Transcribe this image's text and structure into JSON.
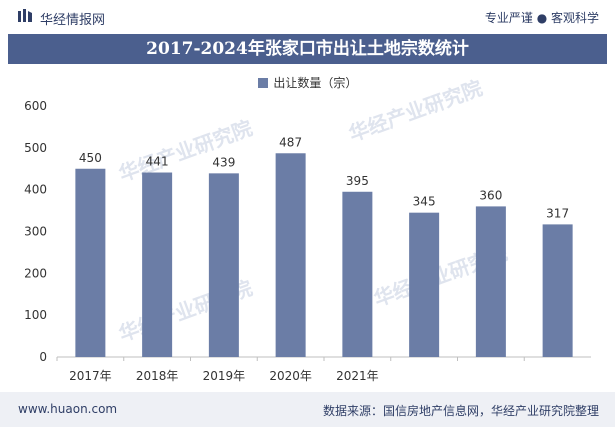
{
  "header": {
    "brand": "华经情报网",
    "tagline": "专业严谨 ● 客观科学"
  },
  "watermark": "华经产业研究院",
  "footer": {
    "site": "www.huaon.com",
    "source": "数据来源：国信房地产信息网，华经产业研究院整理"
  },
  "colors": {
    "bar": "#6b7da6",
    "title_band": "#4b5f8e",
    "brand_text": "#2f3e66"
  },
  "chart_data": {
    "type": "bar",
    "title": "2017-2024年张家口市出让土地宗数统计",
    "categories": [
      "2017年",
      "2018年",
      "2019年",
      "2020年",
      "2021年",
      "",
      "",
      ""
    ],
    "series": [
      {
        "name": "出让数量（宗）",
        "values": [
          450,
          441,
          439,
          487,
          395,
          345,
          360,
          317
        ]
      }
    ],
    "ylim": [
      0,
      600
    ],
    "yticks": [
      0,
      100,
      200,
      300,
      400,
      500,
      600
    ],
    "legend": "top-center",
    "grid": false
  }
}
